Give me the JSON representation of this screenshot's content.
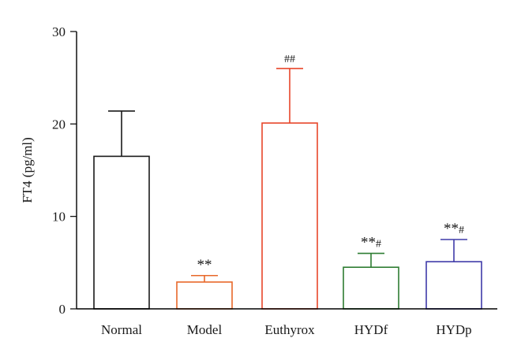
{
  "chart_data": {
    "type": "bar",
    "title": "",
    "xlabel": "",
    "ylabel": "FT4 (pg/ml)",
    "ylim": [
      0,
      30
    ],
    "yticks": [
      0,
      10,
      20,
      30
    ],
    "grid": false,
    "categories": [
      "Normal",
      "Model",
      "Euthyrox",
      "HYDf",
      "HYDp"
    ],
    "values": [
      16.5,
      2.9,
      20.1,
      4.5,
      5.1
    ],
    "error_upper": [
      4.9,
      0.7,
      5.9,
      1.5,
      2.4
    ],
    "annotations": [
      {
        "category": "Normal",
        "stars": "",
        "hashes": ""
      },
      {
        "category": "Model",
        "stars": "**",
        "hashes": ""
      },
      {
        "category": "Euthyrox",
        "stars": "",
        "hashes": "##"
      },
      {
        "category": "HYDf",
        "stars": "**",
        "hashes": "#"
      },
      {
        "category": "HYDp",
        "stars": "**",
        "hashes": "#"
      }
    ],
    "colors": [
      "#1a1a1a",
      "#e8682a",
      "#e8462a",
      "#2e7d32",
      "#3f3aa8"
    ]
  }
}
